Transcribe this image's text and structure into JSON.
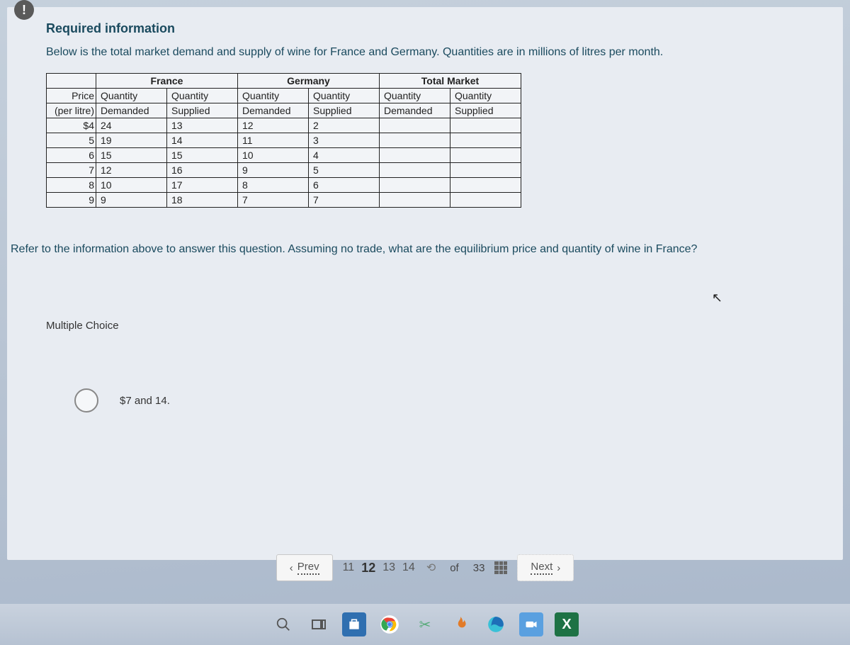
{
  "info_icon_glyph": "!",
  "heading": "Required information",
  "description": "Below is the total market demand and supply of wine for France and Germany. Quantities are in millions of litres per month.",
  "table": {
    "group_headers": [
      "",
      "France",
      "Germany",
      "Total Market"
    ],
    "columns": [
      "Price (per litre)",
      "Quantity Demanded",
      "Quantity Supplied",
      "Quantity Demanded",
      "Quantity Supplied",
      "Quantity Demanded",
      "Quantity Supplied"
    ],
    "col_header_line1": [
      "Price",
      "Quantity",
      "Quantity",
      "Quantity",
      "Quantity",
      "Quantity",
      "Quantity"
    ],
    "col_header_line2": [
      "(per litre)",
      "Demanded",
      "Supplied",
      "Demanded",
      "Supplied",
      "Demanded",
      "Supplied"
    ],
    "rows": [
      [
        "$4",
        "24",
        "13",
        "12",
        "2",
        "",
        ""
      ],
      [
        "5",
        "19",
        "14",
        "11",
        "3",
        "",
        ""
      ],
      [
        "6",
        "15",
        "15",
        "10",
        "4",
        "",
        ""
      ],
      [
        "7",
        "12",
        "16",
        "9",
        "5",
        "",
        ""
      ],
      [
        "8",
        "10",
        "17",
        "8",
        "6",
        "",
        ""
      ],
      [
        "9",
        "9",
        "18",
        "7",
        "7",
        "",
        ""
      ]
    ]
  },
  "question_text": "Refer to the information above to answer this question. Assuming no trade, what are the equilibrium price and quantity of wine in France?",
  "mc_label": "Multiple Choice",
  "choice_text": "$7 and 14.",
  "nav": {
    "prev_label": "Prev",
    "next_label": "Next",
    "pages_visible": [
      "11",
      "12",
      "13",
      "14"
    ],
    "current_page": "12",
    "of_label": "of",
    "total_pages": "33"
  },
  "colors": {
    "heading": "#1a4a5e",
    "body_bg_top": "#c5d0dc",
    "body_bg_bottom": "#aab8cb",
    "panel_bg": "#e8ecf2",
    "table_border": "#222222"
  }
}
